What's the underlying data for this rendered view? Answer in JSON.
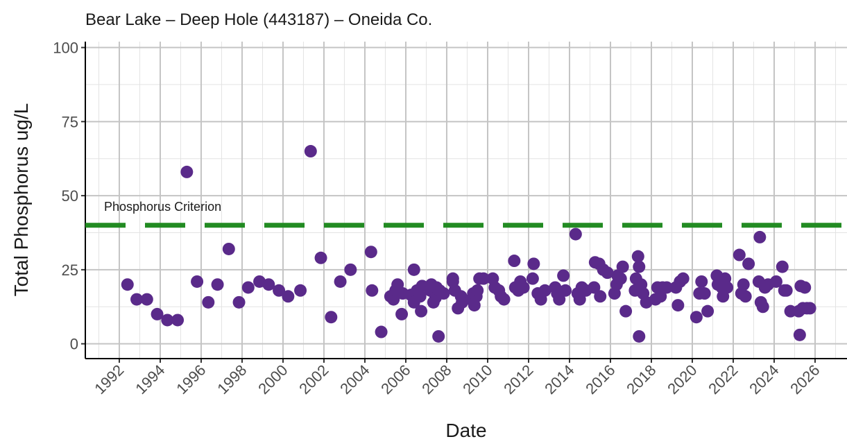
{
  "chart_data": {
    "type": "scatter",
    "title": "Bear Lake – Deep Hole (443187) – Oneida Co.",
    "x_label": "Date",
    "y_label": "Total Phosphorus ug/L",
    "x": [
      1992.4,
      1992.85,
      1993.35,
      1993.85,
      1994.35,
      1994.85,
      1995.3,
      1995.8,
      1996.35,
      1996.8,
      1997.35,
      1997.85,
      1998.3,
      1998.85,
      1999.3,
      1999.8,
      2000.25,
      2000.85,
      2001.35,
      2001.85,
      2002.35,
      2002.8,
      2003.3,
      2004.3,
      2004.35,
      2004.8,
      2005.25,
      2005.4,
      2005.5,
      2005.6,
      2005.8,
      2005.85,
      2006.25,
      2006.4,
      2006.4,
      2006.55,
      2006.7,
      2006.75,
      2006.8,
      2007.2,
      2007.25,
      2007.35,
      2007.45,
      2007.5,
      2007.6,
      2007.65,
      2007.85,
      2008.3,
      2008.3,
      2008.4,
      2008.55,
      2008.7,
      2008.75,
      2009.2,
      2009.3,
      2009.35,
      2009.45,
      2009.5,
      2009.6,
      2009.8,
      2010.25,
      2010.35,
      2010.55,
      2010.65,
      2010.8,
      2011.3,
      2011.35,
      2011.5,
      2011.6,
      2011.75,
      2012.2,
      2012.25,
      2012.45,
      2012.6,
      2012.8,
      2013.3,
      2013.4,
      2013.5,
      2013.7,
      2013.8,
      2014.3,
      2014.4,
      2014.5,
      2014.6,
      2014.8,
      2015.2,
      2015.25,
      2015.45,
      2015.5,
      2015.65,
      2015.85,
      2016.2,
      2016.3,
      2016.35,
      2016.5,
      2016.6,
      2016.75,
      2017.2,
      2017.25,
      2017.35,
      2017.4,
      2017.4,
      2017.5,
      2017.6,
      2017.75,
      2018.2,
      2018.3,
      2018.45,
      2018.55,
      2018.75,
      2019.2,
      2019.3,
      2019.4,
      2019.55,
      2020.2,
      2020.35,
      2020.45,
      2020.6,
      2020.75,
      2021.2,
      2021.25,
      2021.45,
      2021.5,
      2021.6,
      2021.7,
      2022.3,
      2022.4,
      2022.5,
      2022.6,
      2022.75,
      2023.25,
      2023.3,
      2023.35,
      2023.45,
      2023.55,
      2023.7,
      2024.1,
      2024.4,
      2024.5,
      2024.6,
      2024.8,
      2025.2,
      2025.25,
      2025.3,
      2025.4,
      2025.5,
      2025.6,
      2025.75
    ],
    "values": [
      20,
      15,
      15,
      10,
      8,
      8,
      58,
      21,
      14,
      20,
      32,
      14,
      19,
      21,
      20,
      18,
      16,
      18,
      65,
      29,
      9,
      21,
      25,
      31,
      18,
      4,
      16,
      15,
      18,
      20,
      10,
      17,
      16.5,
      25,
      14,
      18,
      16,
      11,
      19.5,
      18,
      20,
      14,
      15.5,
      19,
      2.5,
      18,
      17,
      22,
      21,
      18,
      12,
      16,
      14,
      15,
      17,
      13,
      16,
      18,
      22,
      22,
      22,
      19,
      18,
      16,
      15,
      28,
      19,
      18,
      21,
      19,
      22,
      27,
      17,
      15,
      18,
      19,
      17,
      15,
      23,
      18,
      37,
      17,
      15,
      19,
      18,
      19,
      27.5,
      27,
      16,
      25,
      24,
      17,
      20,
      23,
      22,
      26,
      11,
      18,
      22,
      29.5,
      26,
      2.5,
      20,
      17,
      14,
      15,
      19,
      16,
      19,
      19,
      19,
      13,
      21,
      22,
      9,
      17,
      21,
      17,
      11,
      23,
      20,
      19,
      16,
      22,
      19,
      30,
      17,
      20,
      16,
      27,
      21,
      36,
      14,
      12.5,
      19,
      20,
      21,
      26,
      18,
      18,
      11,
      11,
      3,
      19.5,
      12,
      19,
      12,
      12
    ],
    "color": "#5a2a8a",
    "xlim": [
      1990.34,
      2027.56
    ],
    "xticks": [
      1992,
      1994,
      1996,
      1998,
      2000,
      2002,
      2004,
      2006,
      2008,
      2010,
      2012,
      2014,
      2016,
      2018,
      2020,
      2022,
      2024,
      2026
    ],
    "ylim": [
      -5,
      102
    ],
    "yticks": [
      0,
      25,
      50,
      75,
      100
    ],
    "grid": true,
    "reference_line": {
      "value": 40,
      "label": "Phosphorus Criterion",
      "color": "#228b22"
    }
  }
}
